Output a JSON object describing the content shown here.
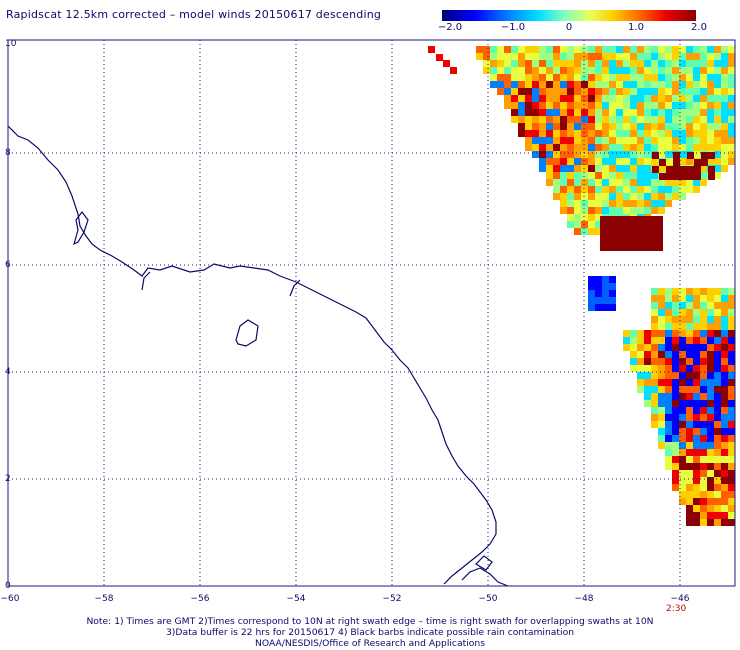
{
  "header": {
    "title": "Rapidscat 12.5km corrected – model winds 20150617 descending"
  },
  "colorbar": {
    "labels": [
      "−2.0",
      "−1.0",
      "0",
      "1.0",
      "2.0"
    ],
    "values": [
      -2.0,
      -1.0,
      0,
      1.0,
      2.0
    ],
    "range": [
      -2.0,
      2.0
    ]
  },
  "map": {
    "lon_range": [
      -60,
      -45
    ],
    "lat_range": [
      0,
      10
    ],
    "lat_ticks": [
      "10",
      "8",
      "6",
      "4",
      "2",
      "0"
    ],
    "lat_values": [
      10,
      8,
      6,
      4,
      2,
      0
    ],
    "lon_ticks": [
      "−60",
      "−58",
      "−56",
      "−54",
      "−52",
      "−50",
      "−48",
      "−46"
    ],
    "lon_values": [
      -60,
      -58,
      -56,
      -54,
      -52,
      -50,
      -48,
      -46
    ],
    "time_label": "2:30",
    "grid": true
  },
  "footer": {
    "line1": "Note: 1) Times are GMT 2)Times correspond to 10N at right swath edge – time is right swath for overlapping swaths at 10N",
    "line2": "3)Data buffer is 22 hrs for 20150617 4) Black barbs indicate possible rain contamination",
    "line3": "NOAA/NESDIS/Office of Research and Applications"
  }
}
